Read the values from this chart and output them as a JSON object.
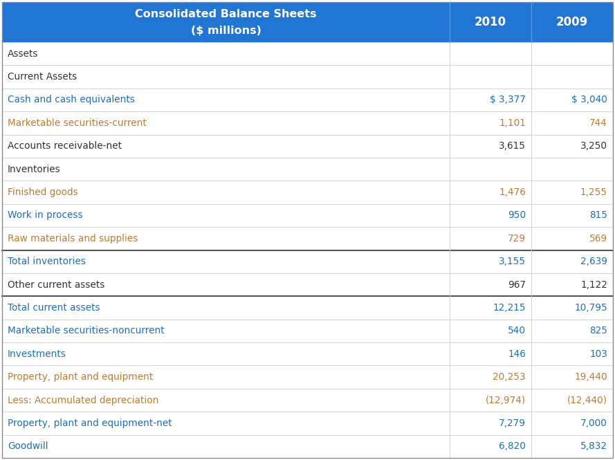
{
  "title_line1": "Consolidated Balance Sheets",
  "title_line2": "($ millions)",
  "col_headers": [
    "2010",
    "2009"
  ],
  "header_bg": "#2176d4",
  "header_text_color": "#ffffff",
  "rows": [
    {
      "label": "Assets",
      "val2010": "",
      "val2009": "",
      "label_color": "#333333",
      "val_color": "#333333",
      "thick_bottom": false
    },
    {
      "label": "Current Assets",
      "val2010": "",
      "val2009": "",
      "label_color": "#333333",
      "val_color": "#333333",
      "thick_bottom": false
    },
    {
      "label": "Cash and cash equivalents",
      "val2010": "$ 3,377",
      "val2009": "$ 3,040",
      "label_color": "#1a6ec7",
      "val_color": "#1a6ec7",
      "thick_bottom": false
    },
    {
      "label": "Marketable securities-current",
      "val2010": "1,101",
      "val2009": "744",
      "label_color": "#c07a30",
      "val_color": "#c07a30",
      "thick_bottom": false
    },
    {
      "label": "Accounts receivable-net",
      "val2010": "3,615",
      "val2009": "3,250",
      "label_color": "#333333",
      "val_color": "#333333",
      "thick_bottom": false
    },
    {
      "label": "Inventories",
      "val2010": "",
      "val2009": "",
      "label_color": "#333333",
      "val_color": "#333333",
      "thick_bottom": false
    },
    {
      "label": "Finished goods",
      "val2010": "1,476",
      "val2009": "1,255",
      "label_color": "#c07a30",
      "val_color": "#c07a30",
      "thick_bottom": false
    },
    {
      "label": "Work in process",
      "val2010": "950",
      "val2009": "815",
      "label_color": "#1a6ec7",
      "val_color": "#1a6ec7",
      "thick_bottom": false
    },
    {
      "label": "Raw materials and supplies",
      "val2010": "729",
      "val2009": "569",
      "label_color": "#c07a30",
      "val_color": "#c07a30",
      "thick_bottom": true
    },
    {
      "label": "Total inventories",
      "val2010": "3,155",
      "val2009": "2,639",
      "label_color": "#1a6ec7",
      "val_color": "#1a6ec7",
      "thick_bottom": false
    },
    {
      "label": "Other current assets",
      "val2010": "967",
      "val2009": "1,122",
      "label_color": "#333333",
      "val_color": "#333333",
      "thick_bottom": true
    },
    {
      "label": "Total current assets",
      "val2010": "12,215",
      "val2009": "10,795",
      "label_color": "#1a6ec7",
      "val_color": "#1a6ec7",
      "thick_bottom": false
    },
    {
      "label": "Marketable securities-noncurrent",
      "val2010": "540",
      "val2009": "825",
      "label_color": "#1a6ec7",
      "val_color": "#1a6ec7",
      "thick_bottom": false
    },
    {
      "label": "Investments",
      "val2010": "146",
      "val2009": "103",
      "label_color": "#1a6ec7",
      "val_color": "#1a6ec7",
      "thick_bottom": false
    },
    {
      "label": "Property, plant and equipment",
      "val2010": "20,253",
      "val2009": "19,440",
      "label_color": "#c07a30",
      "val_color": "#c07a30",
      "thick_bottom": false
    },
    {
      "label": "Less: Accumulated depreciation",
      "val2010": "(12,974)",
      "val2009": "(12,440)",
      "label_color": "#c07a30",
      "val_color": "#c07a30",
      "thick_bottom": false
    },
    {
      "label": "Property, plant and equipment-net",
      "val2010": "7,279",
      "val2009": "7,000",
      "label_color": "#1a6ec7",
      "val_color": "#1a6ec7",
      "thick_bottom": false
    },
    {
      "label": "Goodwill",
      "val2010": "6,820",
      "val2009": "5,832",
      "label_color": "#1a6ec7",
      "val_color": "#1a6ec7",
      "thick_bottom": false
    }
  ],
  "font_size": 9.8,
  "header_font_size": 11.5,
  "col_header_font_size": 12,
  "bg_color": "#ffffff",
  "thin_border_color": "#cccccc",
  "thick_border_color": "#555555",
  "outer_border_color": "#888888"
}
